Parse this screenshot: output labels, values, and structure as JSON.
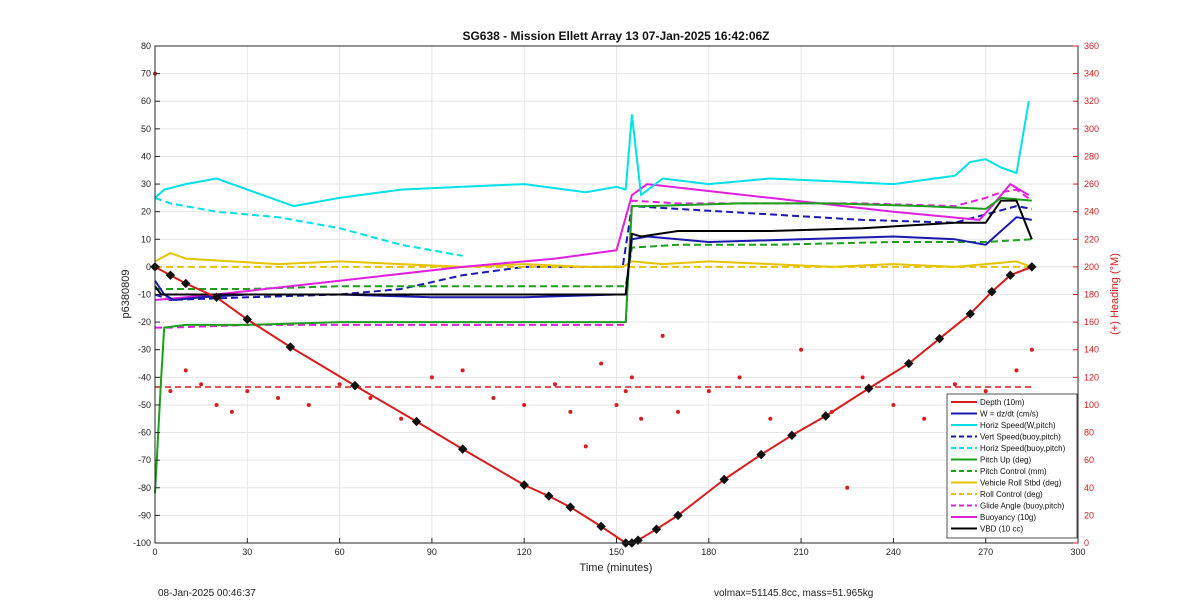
{
  "chart_data": {
    "type": "line",
    "title": "SG638 - Mission Ellett Array 13 07-Jan-2025 16:42:06Z",
    "xlabel": "Time (minutes)",
    "ylabel": "p6380809",
    "y2label": "(+) Heading (°M)",
    "xlim": [
      0,
      300
    ],
    "ylim": [
      -100,
      80
    ],
    "y2lim": [
      0,
      360
    ],
    "xticks": [
      0,
      30,
      60,
      90,
      120,
      150,
      180,
      210,
      240,
      270,
      300
    ],
    "yticks": [
      -100,
      -90,
      -80,
      -70,
      -60,
      -50,
      -40,
      -30,
      -20,
      -10,
      0,
      10,
      20,
      30,
      40,
      50,
      60,
      70,
      80
    ],
    "y2ticks": [
      0,
      20,
      40,
      60,
      80,
      100,
      120,
      140,
      160,
      180,
      200,
      220,
      240,
      260,
      280,
      300,
      320,
      340,
      360
    ],
    "legend_position": "bottom-right",
    "series": [
      {
        "name": "Depth (10m)",
        "color": "#d81c1c",
        "style": "solid",
        "x": [
          0,
          5,
          10,
          20,
          30,
          44,
          65,
          85,
          100,
          120,
          128,
          135,
          145,
          153,
          155,
          157,
          163,
          170,
          185,
          197,
          207,
          218,
          232,
          245,
          255,
          265,
          272,
          278,
          285
        ],
        "y": [
          0,
          -3,
          -6,
          -11,
          -19,
          -29,
          -43,
          -56,
          -66,
          -79,
          -83,
          -87,
          -94,
          -100,
          -100,
          -99,
          -95,
          -90,
          -77,
          -68,
          -61,
          -54,
          -44,
          -35,
          -26,
          -17,
          -9,
          -3,
          0
        ]
      },
      {
        "name": "W = dz/dt (cm/s)",
        "color": "#1a1ab0",
        "style": "solid",
        "x": [
          0,
          3,
          6,
          15,
          30,
          60,
          90,
          120,
          150,
          153,
          155,
          160,
          180,
          210,
          240,
          260,
          270,
          275,
          280,
          285
        ],
        "y": [
          -5,
          -10,
          -12,
          -11,
          -10,
          -10,
          -11,
          -11,
          -10,
          -10,
          10,
          11,
          9,
          10,
          11,
          10,
          8,
          13,
          18,
          17
        ]
      },
      {
        "name": "Horiz Speed(W,pitch)",
        "color": "#00e0e8",
        "style": "solid",
        "x": [
          0,
          3,
          10,
          20,
          30,
          45,
          60,
          80,
          100,
          120,
          140,
          150,
          153,
          155,
          158,
          165,
          180,
          200,
          220,
          240,
          260,
          265,
          270,
          275,
          280,
          284
        ],
        "y": [
          25,
          28,
          30,
          32,
          28,
          22,
          25,
          28,
          29,
          30,
          27,
          29,
          28,
          55,
          26,
          32,
          30,
          32,
          31,
          30,
          33,
          38,
          39,
          36,
          34,
          60
        ]
      },
      {
        "name": "Vert Speed(buoy,pitch)",
        "color": "#1a1ab0",
        "style": "dashed",
        "x": [
          0,
          5,
          30,
          60,
          80,
          100,
          120,
          140,
          152,
          155,
          170,
          200,
          230,
          260,
          270,
          280,
          285
        ],
        "y": [
          -10,
          -12,
          -11,
          -10,
          -8,
          -3,
          0,
          0,
          0,
          22,
          21,
          19,
          17,
          16,
          19,
          22,
          21
        ]
      },
      {
        "name": "Horiz Speed(buoy,pitch)",
        "color": "#00e0e8",
        "style": "dashed",
        "x": [
          0,
          5,
          20,
          40,
          60,
          80,
          100
        ],
        "y": [
          25,
          23,
          20,
          18,
          14,
          8,
          4
        ]
      },
      {
        "name": "Pitch Up (deg)",
        "color": "#1aa01a",
        "style": "solid",
        "x": [
          0,
          2,
          3,
          10,
          30,
          60,
          90,
          120,
          150,
          153,
          155,
          160,
          190,
          220,
          250,
          270,
          275,
          285
        ],
        "y": [
          -82,
          -40,
          -22,
          -21,
          -21,
          -20,
          -20,
          -20,
          -20,
          -20,
          22,
          22,
          23,
          23,
          22,
          21,
          25,
          24
        ]
      },
      {
        "name": "Pitch Control (mm)",
        "color": "#1aa01a",
        "style": "dashed",
        "x": [
          0,
          5,
          30,
          60,
          100,
          150,
          153,
          155,
          170,
          200,
          240,
          270,
          285
        ],
        "y": [
          -8,
          -8,
          -8,
          -7,
          -7,
          -7,
          -7,
          7,
          8,
          8,
          9,
          9,
          10
        ]
      },
      {
        "name": "Vehicle Roll Stbd (deg)",
        "color": "#e6c300",
        "style": "solid",
        "x": [
          0,
          5,
          10,
          25,
          40,
          60,
          80,
          100,
          120,
          140,
          152,
          155,
          165,
          180,
          200,
          220,
          240,
          260,
          270,
          280,
          285
        ],
        "y": [
          2,
          5,
          3,
          2,
          1,
          2,
          1,
          0,
          1,
          0,
          0,
          2,
          1,
          2,
          1,
          0,
          1,
          0,
          1,
          2,
          0
        ]
      },
      {
        "name": "Roll Control (deg)",
        "color": "#e6c300",
        "style": "dashed",
        "x": [
          0,
          50,
          100,
          150,
          155,
          200,
          250,
          285
        ],
        "y": [
          0,
          0,
          0,
          0,
          0,
          0,
          0,
          0
        ]
      },
      {
        "name": "Glide Angle (buoy,pitch)",
        "color": "#e020e0",
        "style": "dashed",
        "x": [
          0,
          5,
          30,
          60,
          90,
          120,
          150,
          153,
          155,
          170,
          200,
          230,
          260,
          270,
          275,
          280,
          285
        ],
        "y": [
          -22,
          -22,
          -21,
          -21,
          -21,
          -21,
          -21,
          -21,
          24,
          23,
          23,
          23,
          22,
          25,
          27,
          28,
          24
        ]
      },
      {
        "name": "Buoyancy (10g)",
        "color": "#e020e0",
        "style": "solid",
        "x": [
          0,
          20,
          60,
          100,
          130,
          150,
          155,
          160,
          200,
          240,
          268,
          272,
          278,
          284
        ],
        "y": [
          -12,
          -10,
          -5,
          0,
          3,
          6,
          26,
          30,
          25,
          20,
          17,
          22,
          30,
          26
        ]
      },
      {
        "name": "VBD (10 cc)",
        "color": "#000000",
        "style": "solid",
        "x": [
          0,
          2,
          30,
          60,
          90,
          120,
          150,
          153,
          155,
          158,
          170,
          200,
          230,
          260,
          270,
          275,
          280,
          285
        ],
        "y": [
          -7,
          -10,
          -10,
          -10,
          -10,
          -10,
          -10,
          -10,
          12,
          11,
          13,
          13,
          14,
          16,
          16,
          24,
          24,
          10
        ]
      }
    ],
    "heading_series": {
      "name": "Heading",
      "axis": "right",
      "color": "#d81c1c",
      "x": [
        0,
        5,
        10,
        15,
        20,
        25,
        30,
        40,
        50,
        60,
        70,
        80,
        90,
        100,
        110,
        120,
        130,
        135,
        140,
        145,
        150,
        153,
        155,
        158,
        165,
        170,
        180,
        190,
        200,
        210,
        220,
        225,
        230,
        240,
        250,
        260,
        270,
        275,
        280,
        285
      ],
      "y": [
        340,
        110,
        125,
        115,
        100,
        95,
        110,
        105,
        100,
        115,
        105,
        90,
        120,
        125,
        105,
        100,
        115,
        95,
        70,
        130,
        100,
        110,
        120,
        90,
        150,
        95,
        110,
        120,
        90,
        140,
        95,
        40,
        120,
        100,
        90,
        115,
        110,
        100,
        125,
        140
      ]
    },
    "heading_reference": {
      "value": 113,
      "style": "dashed",
      "color": "#d81c1c"
    }
  },
  "footer": {
    "left": "08-Jan-2025 00:46:37",
    "right": "volmax=51145.8cc, mass=51.965kg"
  }
}
